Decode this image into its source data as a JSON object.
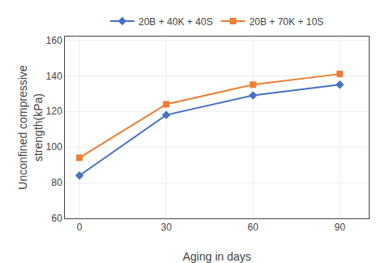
{
  "chart_data": {
    "type": "line",
    "x": [
      0,
      30,
      60,
      90
    ],
    "series": [
      {
        "name": "20B + 40K + 40S",
        "color": "#4472C4",
        "marker": "diamond",
        "values": [
          84,
          118,
          129,
          135
        ]
      },
      {
        "name": "20B + 70K + 10S",
        "color": "#ED7D31",
        "marker": "square",
        "values": [
          94,
          124,
          135,
          141
        ]
      }
    ],
    "xlabel": "Aging in days",
    "ylabel": "Unconfined compressive\nstrength(kPa)",
    "xlim": [
      -5,
      100
    ],
    "ylim": [
      60,
      162
    ],
    "xticks": [
      0,
      30,
      60,
      90
    ],
    "yticks": [
      60,
      80,
      100,
      120,
      140,
      160
    ],
    "grid": true,
    "legend": "top"
  }
}
